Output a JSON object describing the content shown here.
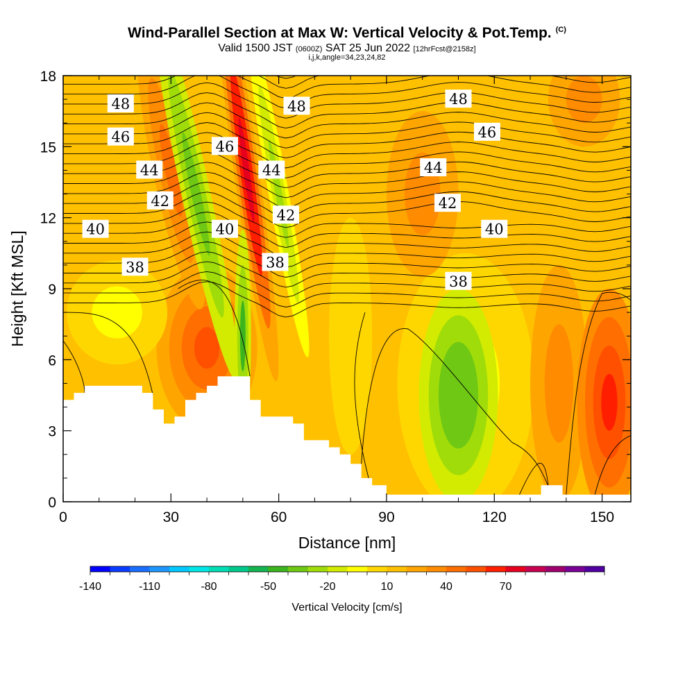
{
  "header": {
    "title": "Wind-Parallel Section at Max W: Vertical Velocity & Pot.Temp.",
    "corner": "(C)",
    "valid_prefix": "Valid 1500 JST",
    "valid_utc": "(0600Z)",
    "valid_date": "SAT 25 Jun 2022",
    "forecast": "[12hrFcst@2158z]",
    "indices": "i,j,k,angle=34,23,24,82"
  },
  "chart_data": {
    "type": "heatmap",
    "title": "Wind-Parallel Section at Max W: Vertical Velocity & Pot.Temp.",
    "xlabel": "Distance [nm]",
    "ylabel": "Height [Kft MSL]",
    "xlim": [
      0,
      158
    ],
    "ylim": [
      0,
      18
    ],
    "x_ticks": [
      "0",
      "30",
      "60",
      "90",
      "120",
      "150"
    ],
    "y_ticks": [
      "0",
      "3",
      "6",
      "9",
      "12",
      "15",
      "18"
    ],
    "colorbar": {
      "label": "Vertical Velocity [cm/s]",
      "tick_labels": [
        "-140",
        "-110",
        "-80",
        "-50",
        "-20",
        "10",
        "40",
        "70"
      ],
      "colors": [
        "#0000ff",
        "#0a3cff",
        "#1a6eff",
        "#1e96ff",
        "#00c8ff",
        "#00e6e6",
        "#00dcb4",
        "#00c88c",
        "#14b450",
        "#3cb41e",
        "#6ec814",
        "#a0dc0a",
        "#d2eb00",
        "#ffff00",
        "#ffd700",
        "#ffc000",
        "#ffa500",
        "#ff8c00",
        "#ff6e00",
        "#ff5000",
        "#ff1e00",
        "#e6001e",
        "#c80050",
        "#a0006e",
        "#780096",
        "#5000a0"
      ]
    },
    "theta_contours": {
      "units": "Pot.Temp.",
      "labels": [
        {
          "text": "48",
          "x": 16,
          "y": 16.8
        },
        {
          "text": "46",
          "x": 16,
          "y": 15.4
        },
        {
          "text": "44",
          "x": 24,
          "y": 14.0
        },
        {
          "text": "42",
          "x": 27,
          "y": 12.7
        },
        {
          "text": "40",
          "x": 9,
          "y": 11.5
        },
        {
          "text": "38",
          "x": 20,
          "y": 9.9
        },
        {
          "text": "46",
          "x": 45,
          "y": 15.0
        },
        {
          "text": "44",
          "x": 58,
          "y": 14.0
        },
        {
          "text": "40",
          "x": 45,
          "y": 11.5
        },
        {
          "text": "48",
          "x": 65,
          "y": 16.7
        },
        {
          "text": "42",
          "x": 62,
          "y": 12.1
        },
        {
          "text": "38",
          "x": 59,
          "y": 10.1
        },
        {
          "text": "48",
          "x": 110,
          "y": 17.0
        },
        {
          "text": "46",
          "x": 118,
          "y": 15.6
        },
        {
          "text": "44",
          "x": 103,
          "y": 14.1
        },
        {
          "text": "42",
          "x": 107,
          "y": 12.6
        },
        {
          "text": "40",
          "x": 120,
          "y": 11.5
        },
        {
          "text": "38",
          "x": 110,
          "y": 9.3
        }
      ]
    },
    "w_features": [
      {
        "name": "downdraft-band-1",
        "x": 38,
        "y": 13,
        "w": -40
      },
      {
        "name": "updraft-band",
        "x": 52,
        "y": 15,
        "w": 40
      },
      {
        "name": "downdraft-band-2",
        "x": 60,
        "y": 14,
        "w": -30
      },
      {
        "name": "updraft-low-left",
        "x": 40,
        "y": 5,
        "w": 40
      },
      {
        "name": "downdraft-center",
        "x": 110,
        "y": 4.5,
        "w": -50
      },
      {
        "name": "updraft-right",
        "x": 152,
        "y": 4,
        "w": 60
      }
    ],
    "terrain_kft": [
      [
        0,
        4.3
      ],
      [
        3,
        4.3
      ],
      [
        3,
        4.6
      ],
      [
        6,
        4.6
      ],
      [
        6,
        4.9
      ],
      [
        22,
        4.9
      ],
      [
        22,
        4.6
      ],
      [
        25,
        4.6
      ],
      [
        25,
        3.9
      ],
      [
        28,
        3.9
      ],
      [
        28,
        3.3
      ],
      [
        31,
        3.3
      ],
      [
        31,
        3.6
      ],
      [
        34,
        3.6
      ],
      [
        34,
        4.3
      ],
      [
        37,
        4.3
      ],
      [
        37,
        4.6
      ],
      [
        40,
        4.6
      ],
      [
        40,
        4.9
      ],
      [
        43,
        4.9
      ],
      [
        43,
        5.3
      ],
      [
        52,
        5.3
      ],
      [
        52,
        4.3
      ],
      [
        55,
        4.3
      ],
      [
        55,
        3.6
      ],
      [
        64,
        3.6
      ],
      [
        64,
        3.3
      ],
      [
        67,
        3.3
      ],
      [
        67,
        2.6
      ],
      [
        74,
        2.6
      ],
      [
        74,
        2.3
      ],
      [
        77,
        2.3
      ],
      [
        77,
        2.0
      ],
      [
        80,
        2.0
      ],
      [
        80,
        1.6
      ],
      [
        83,
        1.6
      ],
      [
        83,
        1.0
      ],
      [
        86,
        1.0
      ],
      [
        86,
        0.7
      ],
      [
        90,
        0.7
      ],
      [
        90,
        0.3
      ],
      [
        133,
        0.3
      ],
      [
        133,
        0.7
      ],
      [
        139,
        0.7
      ],
      [
        139,
        0.3
      ],
      [
        158,
        0.3
      ]
    ]
  }
}
